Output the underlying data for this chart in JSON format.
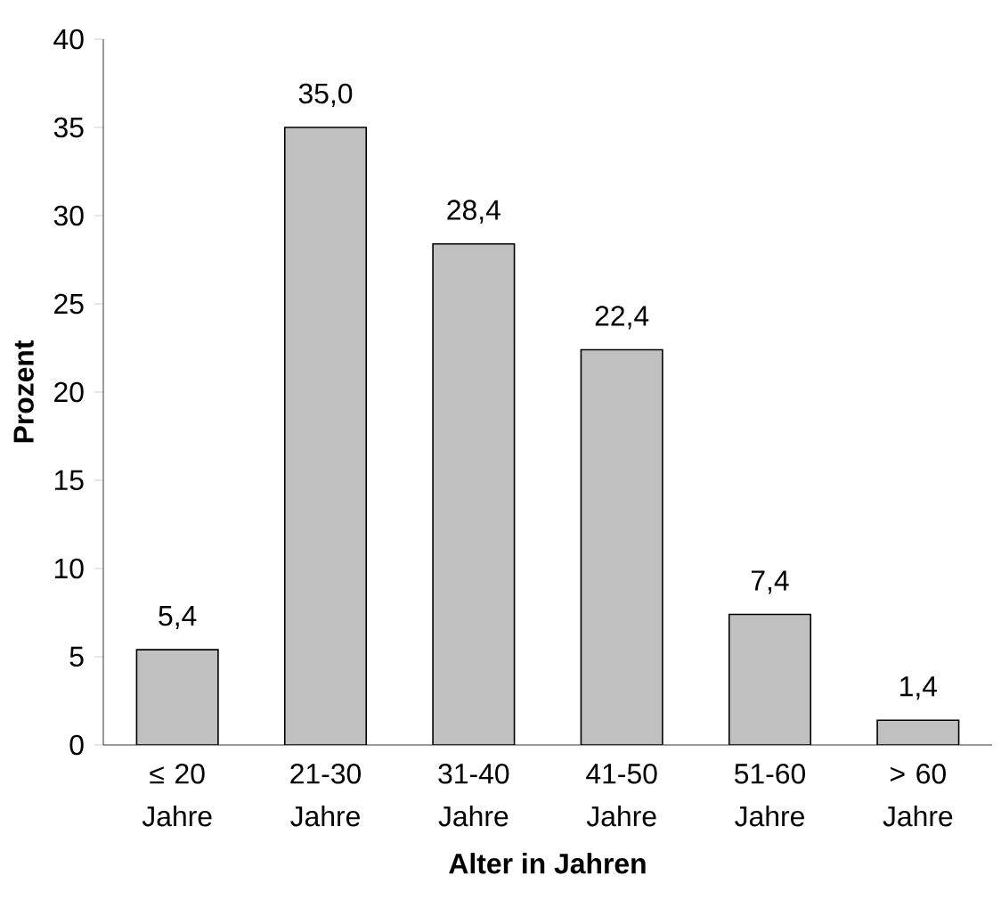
{
  "chart_data": {
    "type": "bar",
    "categories": [
      "≤ 20 Jahre",
      "21-30 Jahre",
      "31-40 Jahre",
      "41-50 Jahre",
      "51-60 Jahre",
      "> 60 Jahre"
    ],
    "values": [
      5.4,
      35.0,
      28.4,
      22.4,
      7.4,
      1.4
    ],
    "value_labels": [
      "5,4",
      "35,0",
      "28,4",
      "22,4",
      "7,4",
      "1,4"
    ],
    "color": "#c0c0c0",
    "ylim": [
      0,
      40
    ],
    "yticks": [
      0,
      5,
      10,
      15,
      20,
      25,
      30,
      35,
      40
    ],
    "xlabel": "Alter in Jahren",
    "ylabel": "Prozent"
  }
}
